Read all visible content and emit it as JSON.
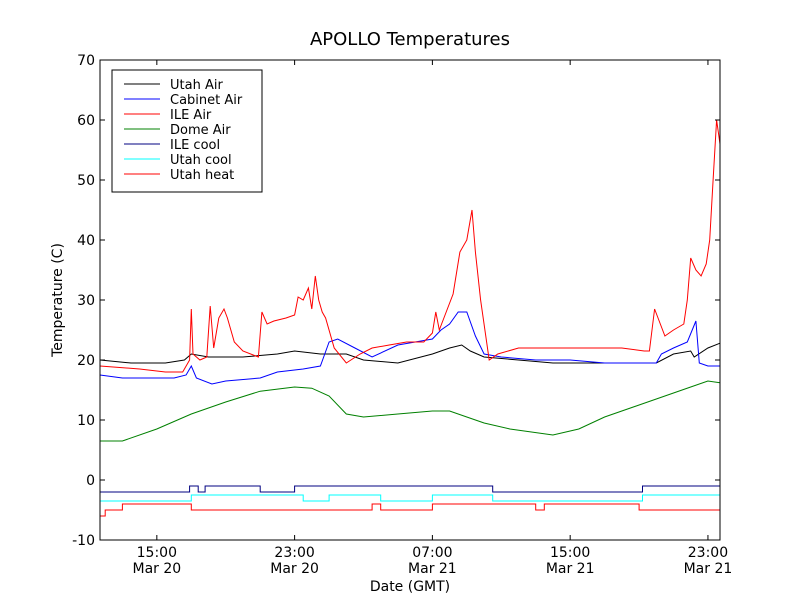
{
  "chart_data": {
    "type": "line",
    "title": "APOLLO Temperatures",
    "xlabel": "Date (GMT)",
    "ylabel": "Temperature (C)",
    "x_unit": "hours since Mar 20 15:00 GMT",
    "xlim": [
      -3.3,
      32.7
    ],
    "ylim": [
      -10,
      70
    ],
    "yticks": [
      -10,
      0,
      10,
      20,
      30,
      40,
      50,
      60,
      70
    ],
    "xticks": [
      {
        "x": 0,
        "time": "15:00",
        "date": "Mar 20"
      },
      {
        "x": 8,
        "time": "23:00",
        "date": "Mar 20"
      },
      {
        "x": 16,
        "time": "07:00",
        "date": "Mar 21"
      },
      {
        "x": 24,
        "time": "15:00",
        "date": "Mar 21"
      },
      {
        "x": 32,
        "time": "23:00",
        "date": "Mar 21"
      }
    ],
    "legend_position": "top-left",
    "series": [
      {
        "name": "Utah Air",
        "color": "#000000",
        "x": [
          -3.3,
          -1.5,
          0.5,
          1.6,
          2.0,
          3.0,
          5.0,
          7.0,
          8.0,
          9.5,
          11.0,
          12.0,
          14.0,
          16.0,
          17.0,
          17.7,
          18.2,
          19.0,
          21.0,
          23.0,
          25.0,
          27.0,
          29.0,
          30.0,
          31.0,
          31.2,
          32.0,
          32.7
        ],
        "y": [
          20,
          19.5,
          19.5,
          20,
          21,
          20.5,
          20.5,
          21,
          21.5,
          21,
          21,
          20,
          19.5,
          21,
          22,
          22.5,
          21.5,
          20.5,
          20,
          19.5,
          19.5,
          19.5,
          19.5,
          21,
          21.5,
          20.5,
          22,
          22.8
        ]
      },
      {
        "name": "Cabinet Air",
        "color": "#0000ff",
        "x": [
          -3.3,
          -2.0,
          -0.5,
          1.0,
          1.7,
          2.0,
          2.3,
          3.2,
          4.0,
          6.0,
          7.0,
          8.5,
          9.5,
          10.0,
          10.5,
          11.5,
          12.5,
          14.0,
          15.0,
          16.0,
          16.5,
          17.0,
          17.5,
          18.0,
          18.5,
          19.0,
          20.0,
          22.0,
          24.0,
          26.0,
          27.5,
          29.0,
          29.3,
          30.0,
          30.8,
          31.3,
          31.5,
          32.0,
          32.7
        ],
        "y": [
          17.5,
          17,
          17,
          17,
          17.5,
          19,
          17,
          16,
          16.5,
          17,
          18,
          18.5,
          19,
          23,
          23.5,
          22,
          20.5,
          22.5,
          23,
          23.5,
          25,
          26,
          28,
          28,
          24,
          21,
          20.5,
          20,
          20,
          19.5,
          19.5,
          19.5,
          21,
          22,
          23,
          26.5,
          19.5,
          19,
          19
        ]
      },
      {
        "name": "ILE Air",
        "color": "#ff0000",
        "x": [
          -3.3,
          -1.0,
          0.5,
          1.5,
          1.9,
          2.0,
          2.1,
          2.5,
          2.9,
          3.1,
          3.3,
          3.6,
          3.9,
          4.1,
          4.5,
          5.0,
          5.9,
          6.1,
          6.4,
          6.8,
          7.5,
          8.0,
          8.2,
          8.5,
          8.8,
          9.0,
          9.2,
          9.4,
          9.6,
          9.8,
          10.3,
          11.0,
          11.8,
          12.5,
          13.5,
          14.5,
          15.5,
          16.0,
          16.2,
          16.4,
          16.8,
          17.2,
          17.6,
          18.0,
          18.3,
          18.5,
          18.8,
          19.3,
          19.8,
          21.0,
          23.0,
          25.0,
          27.0,
          28.3,
          28.6,
          28.9,
          29.5,
          30.0,
          30.6,
          30.8,
          31.0,
          31.3,
          31.6,
          31.9,
          32.1,
          32.3,
          32.5,
          32.7
        ],
        "y": [
          19,
          18.5,
          18,
          18,
          20,
          28.5,
          21,
          20,
          20.5,
          29,
          22,
          27,
          28.5,
          27,
          23,
          21.5,
          20.5,
          28,
          26,
          26.5,
          27,
          27.5,
          30.5,
          30,
          32,
          28.5,
          34,
          30,
          28,
          27,
          22,
          19.5,
          21,
          22,
          22.5,
          23,
          23,
          24.5,
          28,
          25,
          28,
          31,
          38,
          40,
          45,
          38,
          30,
          20,
          21,
          22,
          22,
          22,
          22,
          21.5,
          21.5,
          28.5,
          24,
          25,
          26,
          30,
          37,
          35,
          34,
          36,
          40,
          50,
          60,
          56
        ]
      },
      {
        "name": "Dome Air",
        "color": "#008000",
        "x": [
          -3.3,
          -2.0,
          0.0,
          2.0,
          4.0,
          6.0,
          8.0,
          9.0,
          10.0,
          11.0,
          12.0,
          14.0,
          16.0,
          17.0,
          18.0,
          19.0,
          20.5,
          23.0,
          24.5,
          26.0,
          28.0,
          30.0,
          31.0,
          32.0,
          32.7
        ],
        "y": [
          6.5,
          6.5,
          8.5,
          11,
          13,
          14.8,
          15.5,
          15.3,
          14,
          11,
          10.5,
          11,
          11.5,
          11.5,
          10.5,
          9.5,
          8.5,
          7.5,
          8.5,
          10.5,
          12.5,
          14.5,
          15.5,
          16.5,
          16.2
        ]
      },
      {
        "name": "ILE cool",
        "color": "#000080",
        "x": [
          -3.3,
          1.9,
          1.9,
          2.4,
          2.4,
          2.8,
          2.8,
          6.0,
          6.0,
          8.0,
          8.0,
          16.0,
          16.0,
          19.5,
          19.5,
          28.2,
          28.2,
          32.7
        ],
        "y": [
          -2,
          -2,
          -1,
          -1,
          -2,
          -2,
          -1,
          -1,
          -2,
          -2,
          -1,
          -1,
          -1,
          -1,
          -2,
          -2,
          -1,
          -1
        ]
      },
      {
        "name": "Utah cool",
        "color": "#00ffff",
        "x": [
          -3.3,
          2.0,
          2.0,
          8.5,
          8.5,
          10.0,
          10.0,
          13.0,
          13.0,
          16.0,
          16.0,
          19.5,
          19.5,
          28.2,
          28.2,
          32.7
        ],
        "y": [
          -3.5,
          -3.5,
          -2.5,
          -2.5,
          -3.5,
          -3.5,
          -2.5,
          -2.5,
          -3.5,
          -3.5,
          -2.5,
          -2.5,
          -3.5,
          -3.5,
          -2.5,
          -2.5
        ]
      },
      {
        "name": "Utah heat",
        "color": "#ff0000",
        "x": [
          -3.3,
          -3.0,
          -3.0,
          -2.0,
          -2.0,
          2.0,
          2.0,
          12.5,
          12.5,
          13.0,
          13.0,
          16.0,
          16.0,
          22.0,
          22.0,
          22.5,
          22.5,
          28.0,
          28.0,
          28.5,
          28.5,
          32.7
        ],
        "y": [
          -6,
          -6,
          -5,
          -5,
          -4,
          -4,
          -5,
          -5,
          -4,
          -4,
          -5,
          -5,
          -4,
          -4,
          -5,
          -5,
          -4,
          -4,
          -5,
          -5,
          -5,
          -5
        ]
      }
    ]
  }
}
